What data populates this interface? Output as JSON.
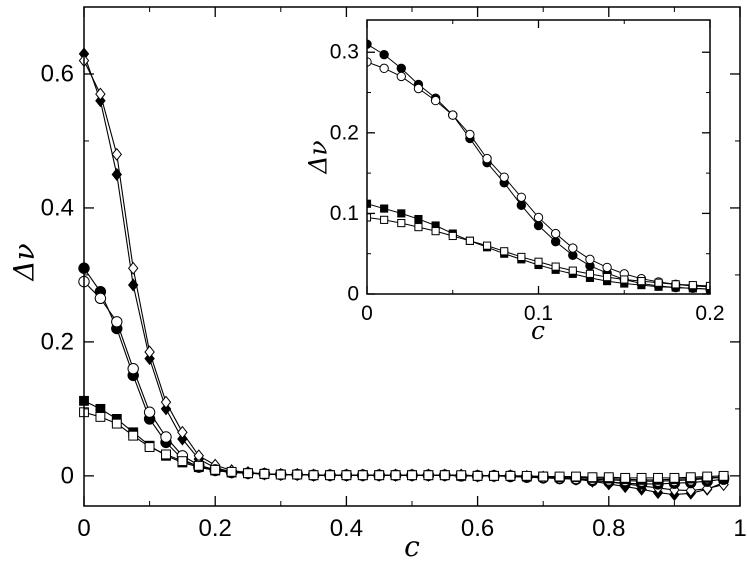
{
  "chart_data": [
    {
      "type": "line",
      "xlabel": "c",
      "ylabel": "Δν",
      "xlim": [
        0,
        1
      ],
      "ylim": [
        -0.045,
        0.7
      ],
      "xticks": [
        0,
        0.2,
        0.4,
        0.6,
        0.8,
        1
      ],
      "yticks": [
        0,
        0.2,
        0.4,
        0.6
      ],
      "xtick_labels": [
        "0",
        "0.2",
        "0.4",
        "0.6",
        "0.8",
        "1"
      ],
      "ytick_labels": [
        "0",
        "0.2",
        "0.4",
        "0.6"
      ],
      "grid": false,
      "series": [
        {
          "marker": "diamond",
          "filled": true,
          "x": [
            0,
            0.025,
            0.05,
            0.075,
            0.1,
            0.125,
            0.15,
            0.175,
            0.2,
            0.225,
            0.25,
            0.275,
            0.3,
            0.325,
            0.35,
            0.375,
            0.4,
            0.425,
            0.45,
            0.475,
            0.5,
            0.525,
            0.55,
            0.575,
            0.6,
            0.625,
            0.65,
            0.675,
            0.7,
            0.725,
            0.75,
            0.775,
            0.8,
            0.825,
            0.85,
            0.875,
            0.9,
            0.925,
            0.95,
            0.975
          ],
          "y": [
            0.63,
            0.56,
            0.45,
            0.285,
            0.175,
            0.1,
            0.055,
            0.025,
            0.012,
            0.006,
            0.004,
            0.003,
            0.002,
            0.002,
            0.001,
            0.001,
            0.001,
            0.001,
            0.001,
            0.001,
            0.001,
            0.001,
            0.001,
            0.001,
            0.0,
            0.0,
            0.0,
            -0.001,
            -0.002,
            -0.003,
            -0.005,
            -0.008,
            -0.012,
            -0.016,
            -0.02,
            -0.025,
            -0.028,
            -0.026,
            -0.02,
            -0.01
          ]
        },
        {
          "marker": "diamond",
          "filled": false,
          "x": [
            0,
            0.025,
            0.05,
            0.075,
            0.1,
            0.125,
            0.15,
            0.175,
            0.2,
            0.225,
            0.25,
            0.275,
            0.3,
            0.325,
            0.35,
            0.375,
            0.4,
            0.425,
            0.45,
            0.475,
            0.5,
            0.525,
            0.55,
            0.575,
            0.6,
            0.625,
            0.65,
            0.675,
            0.7,
            0.725,
            0.75,
            0.775,
            0.8,
            0.825,
            0.85,
            0.875,
            0.9,
            0.925,
            0.95,
            0.975
          ],
          "y": [
            0.62,
            0.57,
            0.48,
            0.31,
            0.185,
            0.11,
            0.065,
            0.03,
            0.016,
            0.008,
            0.005,
            0.003,
            0.002,
            0.002,
            0.001,
            0.001,
            0.001,
            0.001,
            0.001,
            0.001,
            0.001,
            0.001,
            0.001,
            0.001,
            0.0,
            0.0,
            0.0,
            -0.001,
            -0.002,
            -0.003,
            -0.004,
            -0.006,
            -0.009,
            -0.012,
            -0.015,
            -0.018,
            -0.021,
            -0.022,
            -0.019,
            -0.013
          ]
        },
        {
          "marker": "circle",
          "filled": true,
          "x": [
            0,
            0.025,
            0.05,
            0.075,
            0.1,
            0.125,
            0.15,
            0.175,
            0.2,
            0.225,
            0.25,
            0.275,
            0.3,
            0.325,
            0.35,
            0.375,
            0.4,
            0.425,
            0.45,
            0.475,
            0.5,
            0.525,
            0.55,
            0.575,
            0.6,
            0.625,
            0.65,
            0.675,
            0.7,
            0.725,
            0.75,
            0.775,
            0.8,
            0.825,
            0.85,
            0.875,
            0.9,
            0.925,
            0.95,
            0.975
          ],
          "y": [
            0.31,
            0.275,
            0.22,
            0.15,
            0.085,
            0.05,
            0.025,
            0.013,
            0.008,
            0.005,
            0.004,
            0.003,
            0.002,
            0.002,
            0.001,
            0.001,
            0.001,
            0.001,
            0.001,
            0.001,
            0.001,
            0.001,
            0.001,
            0.0,
            0.0,
            0.0,
            -0.001,
            -0.002,
            -0.003,
            -0.004,
            -0.005,
            -0.007,
            -0.009,
            -0.011,
            -0.012,
            -0.012,
            -0.011,
            -0.01,
            -0.008,
            -0.005
          ]
        },
        {
          "marker": "circle",
          "filled": false,
          "x": [
            0,
            0.025,
            0.05,
            0.075,
            0.1,
            0.125,
            0.15,
            0.175,
            0.2,
            0.225,
            0.25,
            0.275,
            0.3,
            0.325,
            0.35,
            0.375,
            0.4,
            0.425,
            0.45,
            0.475,
            0.5,
            0.525,
            0.55,
            0.575,
            0.6,
            0.625,
            0.65,
            0.675,
            0.7,
            0.725,
            0.75,
            0.775,
            0.8,
            0.825,
            0.85,
            0.875,
            0.9,
            0.925,
            0.95,
            0.975
          ],
          "y": [
            0.29,
            0.265,
            0.23,
            0.16,
            0.095,
            0.058,
            0.03,
            0.016,
            0.009,
            0.005,
            0.004,
            0.003,
            0.002,
            0.002,
            0.001,
            0.001,
            0.001,
            0.001,
            0.001,
            0.001,
            0.001,
            0.001,
            0.001,
            0.0,
            0.0,
            0.0,
            0.0,
            -0.001,
            -0.002,
            -0.003,
            -0.004,
            -0.005,
            -0.006,
            -0.007,
            -0.008,
            -0.008,
            -0.007,
            -0.006,
            -0.004,
            -0.002
          ]
        },
        {
          "marker": "square",
          "filled": true,
          "x": [
            0,
            0.025,
            0.05,
            0.075,
            0.1,
            0.125,
            0.15,
            0.175,
            0.2,
            0.225,
            0.25,
            0.275,
            0.3,
            0.325,
            0.35,
            0.375,
            0.4,
            0.425,
            0.45,
            0.475,
            0.5,
            0.525,
            0.55,
            0.575,
            0.6,
            0.625,
            0.65,
            0.675,
            0.7,
            0.725,
            0.75,
            0.775,
            0.8,
            0.825,
            0.85,
            0.875,
            0.9,
            0.925,
            0.95,
            0.975
          ],
          "y": [
            0.112,
            0.1,
            0.085,
            0.065,
            0.045,
            0.03,
            0.02,
            0.013,
            0.008,
            0.005,
            0.004,
            0.003,
            0.002,
            0.002,
            0.001,
            0.001,
            0.001,
            0.001,
            0.001,
            0.001,
            0.001,
            0.001,
            0.001,
            0.0,
            0.0,
            0.0,
            0.0,
            -0.001,
            -0.001,
            -0.002,
            -0.002,
            -0.003,
            -0.004,
            -0.005,
            -0.006,
            -0.006,
            -0.005,
            -0.004,
            -0.003,
            -0.002
          ]
        },
        {
          "marker": "square",
          "filled": false,
          "x": [
            0,
            0.025,
            0.05,
            0.075,
            0.1,
            0.125,
            0.15,
            0.175,
            0.2,
            0.225,
            0.25,
            0.275,
            0.3,
            0.325,
            0.35,
            0.375,
            0.4,
            0.425,
            0.45,
            0.475,
            0.5,
            0.525,
            0.55,
            0.575,
            0.6,
            0.625,
            0.65,
            0.675,
            0.7,
            0.725,
            0.75,
            0.775,
            0.8,
            0.825,
            0.85,
            0.875,
            0.9,
            0.925,
            0.95,
            0.975
          ],
          "y": [
            0.095,
            0.088,
            0.078,
            0.06,
            0.043,
            0.032,
            0.022,
            0.015,
            0.009,
            0.006,
            0.004,
            0.003,
            0.002,
            0.002,
            0.001,
            0.001,
            0.001,
            0.001,
            0.001,
            0.001,
            0.001,
            0.001,
            0.001,
            0.001,
            0.0,
            0.0,
            0.0,
            0.0,
            -0.001,
            -0.001,
            -0.001,
            -0.002,
            -0.002,
            -0.003,
            -0.003,
            -0.003,
            -0.003,
            -0.002,
            -0.001,
            0.0
          ]
        }
      ]
    },
    {
      "type": "line",
      "xlabel": "c",
      "ylabel": "Δν",
      "xlim": [
        0,
        0.2
      ],
      "ylim": [
        0,
        0.34
      ],
      "xticks": [
        0,
        0.1,
        0.2
      ],
      "yticks": [
        0,
        0.1,
        0.2,
        0.3
      ],
      "xtick_labels": [
        "0",
        "0.1",
        "0.2"
      ],
      "ytick_labels": [
        "0",
        "0.1",
        "0.2",
        "0.3"
      ],
      "grid": false,
      "series": [
        {
          "marker": "circle",
          "filled": true,
          "x": [
            0,
            0.01,
            0.02,
            0.03,
            0.04,
            0.05,
            0.06,
            0.07,
            0.08,
            0.09,
            0.1,
            0.11,
            0.12,
            0.13,
            0.14,
            0.15,
            0.16,
            0.17,
            0.18,
            0.19,
            0.2
          ],
          "y": [
            0.31,
            0.297,
            0.28,
            0.26,
            0.243,
            0.222,
            0.193,
            0.163,
            0.138,
            0.11,
            0.085,
            0.065,
            0.048,
            0.035,
            0.026,
            0.018,
            0.013,
            0.01,
            0.008,
            0.007,
            0.006
          ]
        },
        {
          "marker": "circle",
          "filled": false,
          "x": [
            0,
            0.01,
            0.02,
            0.03,
            0.04,
            0.05,
            0.06,
            0.07,
            0.08,
            0.09,
            0.1,
            0.11,
            0.12,
            0.13,
            0.14,
            0.15,
            0.16,
            0.17,
            0.18,
            0.19,
            0.2
          ],
          "y": [
            0.288,
            0.28,
            0.27,
            0.255,
            0.24,
            0.222,
            0.198,
            0.168,
            0.145,
            0.12,
            0.095,
            0.075,
            0.057,
            0.043,
            0.033,
            0.025,
            0.019,
            0.015,
            0.012,
            0.01,
            0.009
          ]
        },
        {
          "marker": "square",
          "filled": true,
          "x": [
            0,
            0.01,
            0.02,
            0.03,
            0.04,
            0.05,
            0.06,
            0.07,
            0.08,
            0.09,
            0.1,
            0.11,
            0.12,
            0.13,
            0.14,
            0.15,
            0.16,
            0.17,
            0.18,
            0.19,
            0.2
          ],
          "y": [
            0.112,
            0.106,
            0.1,
            0.093,
            0.085,
            0.075,
            0.066,
            0.058,
            0.05,
            0.043,
            0.036,
            0.03,
            0.025,
            0.02,
            0.016,
            0.013,
            0.011,
            0.009,
            0.008,
            0.007,
            0.006
          ]
        },
        {
          "marker": "square",
          "filled": false,
          "x": [
            0,
            0.01,
            0.02,
            0.03,
            0.04,
            0.05,
            0.06,
            0.07,
            0.08,
            0.09,
            0.1,
            0.11,
            0.12,
            0.13,
            0.14,
            0.15,
            0.16,
            0.17,
            0.18,
            0.19,
            0.2
          ],
          "y": [
            0.095,
            0.092,
            0.088,
            0.083,
            0.078,
            0.072,
            0.066,
            0.06,
            0.053,
            0.046,
            0.04,
            0.034,
            0.029,
            0.025,
            0.021,
            0.018,
            0.016,
            0.014,
            0.012,
            0.011,
            0.01
          ]
        }
      ]
    }
  ]
}
